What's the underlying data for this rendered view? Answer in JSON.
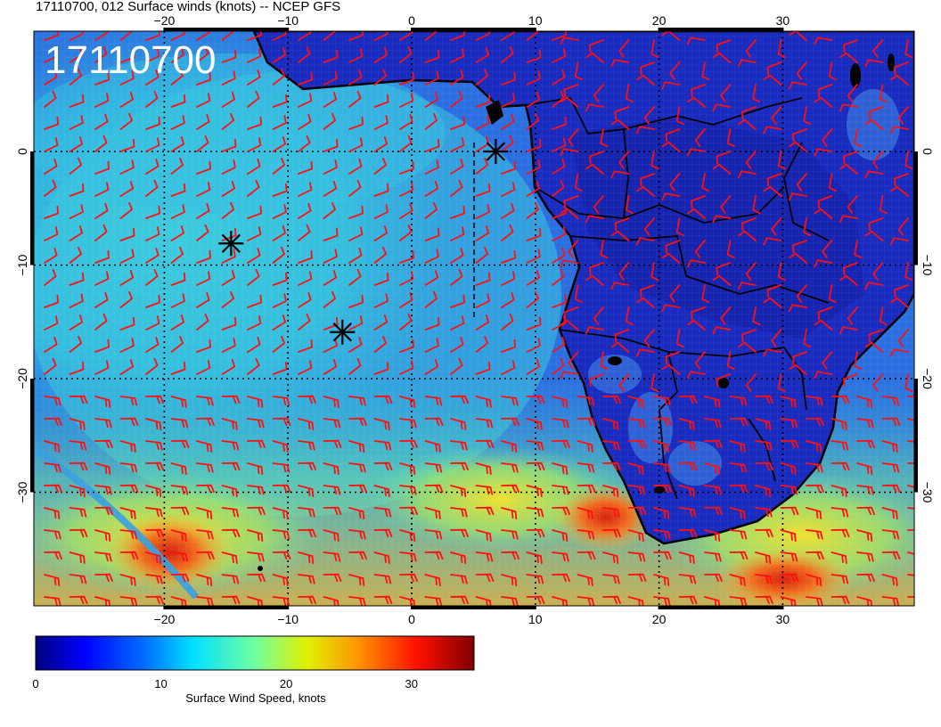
{
  "title": "17110700, 012 Surface winds (knots) -- NCEP GFS",
  "date_stamp": "17110700",
  "map": {
    "lon_range": [
      -30,
      41
    ],
    "lat_range": [
      -40,
      10
    ],
    "lon_ticks": [
      "-20",
      "-10",
      "0",
      "10",
      "20",
      "30"
    ],
    "lat_ticks": [
      "0",
      "-10",
      "-20",
      "-30"
    ],
    "gridlines": "dotted",
    "barb_color": "#ff0000",
    "land_outline_color": "#000000"
  },
  "markers": [
    {
      "name": "marker-1",
      "lon": -14.6,
      "lat": -8.1
    },
    {
      "name": "marker-2",
      "lon": -5.6,
      "lat": -15.9
    },
    {
      "name": "marker-3",
      "lon": 6.8,
      "lat": 0.0
    }
  ],
  "colorbar": {
    "label": "Surface Wind Speed, knots",
    "ticks": [
      "0",
      "10",
      "20",
      "30"
    ],
    "range": [
      0,
      35
    ],
    "colormap": [
      "#00008f",
      "#0000ff",
      "#0080ff",
      "#00ffff",
      "#80ff80",
      "#ffff00",
      "#ff8000",
      "#ff0000",
      "#800000"
    ]
  }
}
